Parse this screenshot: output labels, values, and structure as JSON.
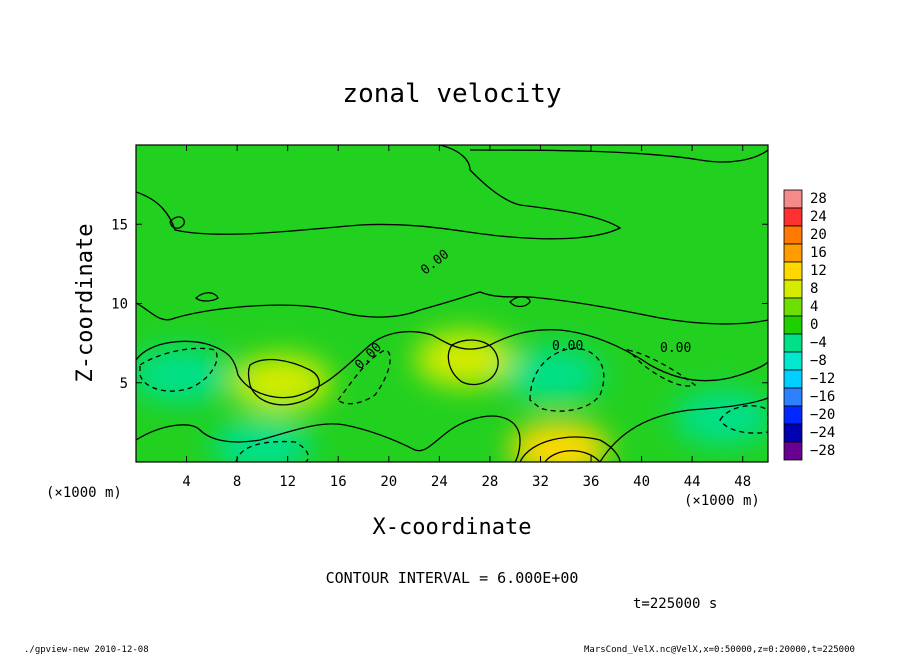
{
  "chart_data": {
    "type": "heatmap",
    "title": "zonal velocity",
    "xlabel": "X-coordinate",
    "ylabel": "Z-coordinate",
    "x_unit_left": "(×1000 m)",
    "x_unit_right": "(×1000 m)",
    "z_unit": "(×1000 m)",
    "xlim": [
      0,
      50
    ],
    "ylim": [
      0,
      20
    ],
    "x_ticks": [
      4,
      8,
      12,
      16,
      20,
      24,
      28,
      32,
      36,
      40,
      44,
      48
    ],
    "y_ticks": [
      5,
      10,
      15
    ],
    "colorbar_levels": [
      28,
      24,
      20,
      16,
      12,
      8,
      4,
      0,
      -4,
      -8,
      -12,
      -16,
      -20,
      -24,
      -28
    ],
    "colorbar_colors": [
      "#f58a8a",
      "#ff3030",
      "#ff7a00",
      "#ff9d00",
      "#ffd800",
      "#d4ec00",
      "#6ee000",
      "#1fd000",
      "#00e089",
      "#00e8d0",
      "#00d0ff",
      "#2f80ff",
      "#0028ff",
      "#0000b0",
      "#6a0090"
    ],
    "contour_labels": [
      {
        "text": "0.00",
        "x": 23.2,
        "y": 12.4
      },
      {
        "text": "0.00",
        "x": 18.3,
        "y": 7.0
      },
      {
        "text": "0.00",
        "x": 34.0,
        "y": 7.3
      },
      {
        "text": "0.00",
        "x": 42.5,
        "y": 7.3
      }
    ],
    "features": [
      {
        "kind": "positive",
        "x": 11.5,
        "y": 5.0,
        "value": 6
      },
      {
        "kind": "positive",
        "x": 26.0,
        "y": 6.5,
        "value": 6
      },
      {
        "kind": "positive",
        "x": 33.5,
        "y": 0.8,
        "value": 12
      },
      {
        "kind": "negative",
        "x": 3.5,
        "y": 5.5,
        "value": -6
      },
      {
        "kind": "negative",
        "x": 33.0,
        "y": 5.5,
        "value": -6
      },
      {
        "kind": "negative",
        "x": 10.0,
        "y": 1.0,
        "value": -6
      },
      {
        "kind": "negative",
        "x": 46.5,
        "y": 2.8,
        "value": -6
      }
    ]
  },
  "contour_interval": "CONTOUR INTERVAL = 6.000E+00",
  "time_label": "t=225000 s",
  "footer_left": "./gpview-new  2010-12-08",
  "footer_right": "MarsCond_VelX.nc@VelX,x=0:50000,z=0:20000,t=225000"
}
